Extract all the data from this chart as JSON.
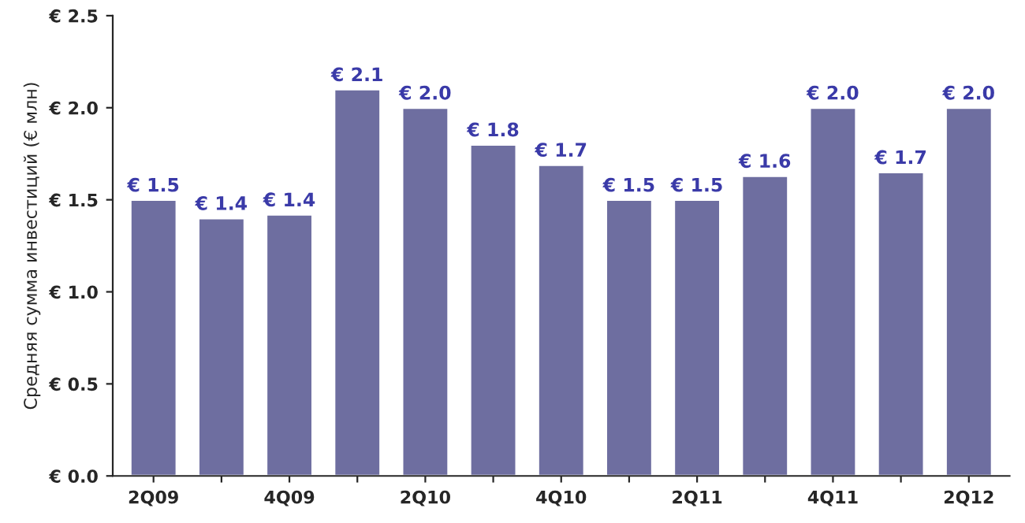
{
  "chart_data": {
    "type": "bar",
    "ylabel": "Средняя сумма инвестиций (€ млн)",
    "categories": [
      "2Q09",
      null,
      "4Q09",
      null,
      "2Q10",
      null,
      "4Q10",
      null,
      "2Q11",
      null,
      "4Q11",
      null,
      "2Q12"
    ],
    "values": [
      1.5,
      1.4,
      1.42,
      2.1,
      2.0,
      1.8,
      1.69,
      1.5,
      1.5,
      1.63,
      2.0,
      1.65,
      2.0
    ],
    "value_labels": [
      "€ 1.5",
      "€ 1.4",
      "€ 1.4",
      "€ 2.1",
      "€ 2.0",
      "€ 1.8",
      "€ 1.7",
      "€ 1.5",
      "€ 1.5",
      "€ 1.6",
      "€ 2.0",
      "€ 1.7",
      "€ 2.0"
    ],
    "color": "#6e6ea0",
    "ylim": [
      0,
      2.5
    ],
    "yticks": [
      {
        "value": 0,
        "label": "€ 0.0"
      },
      {
        "value": 0.5,
        "label": "€ 0.5"
      },
      {
        "value": 1.0,
        "label": "€ 1.0"
      },
      {
        "value": 1.5,
        "label": "€ 1.5"
      },
      {
        "value": 2.0,
        "label": "€ 2.0"
      },
      {
        "value": 2.5,
        "label": "€ 2.5"
      }
    ],
    "grid": false,
    "legend": false
  }
}
